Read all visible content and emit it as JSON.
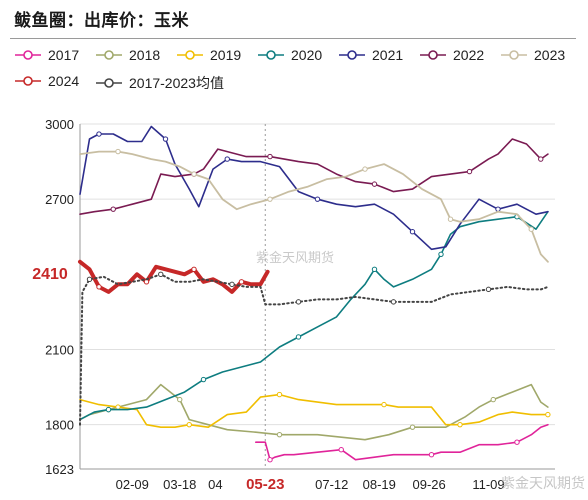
{
  "page": {
    "title": "鲅鱼圈：出库价：玉米",
    "watermark_center": "紫金天风期货",
    "watermark_corner": "紫金天风期货"
  },
  "chart_data": {
    "type": "line",
    "title": "鲅鱼圈：出库价：玉米",
    "ylim": [
      1623,
      3000
    ],
    "y_ticks": [
      {
        "label": "3000",
        "value": 3000
      },
      {
        "label": "2700",
        "value": 2700
      },
      {
        "label": "2100",
        "value": 2100
      },
      {
        "label": "1800",
        "value": 1800
      },
      {
        "label": "1623",
        "value": 1623
      }
    ],
    "x_ticks": [
      {
        "label": "02-09",
        "value": 0.11
      },
      {
        "label": "03-18",
        "value": 0.21
      },
      {
        "label": "04",
        "value": 0.285
      },
      {
        "label": "05-23",
        "value": 0.39
      },
      {
        "label": "07-12",
        "value": 0.53
      },
      {
        "label": "08-19",
        "value": 0.63
      },
      {
        "label": "09-26",
        "value": 0.735
      },
      {
        "label": "11-09",
        "value": 0.86
      }
    ],
    "highlight_x": {
      "label": "05-23",
      "value": 0.39
    },
    "latest_label": {
      "text": "2410",
      "value": 2410
    },
    "grid": "horizontal",
    "legend": "top",
    "series": [
      {
        "name": "2017",
        "color": "#e0249a",
        "style": "solid",
        "width": 1.6,
        "x": [
          0.37,
          0.39,
          0.4,
          0.41,
          0.43,
          0.45,
          0.5,
          0.55,
          0.58,
          0.62,
          0.66,
          0.7,
          0.74,
          0.76,
          0.8,
          0.84,
          0.88,
          0.92,
          0.95,
          0.97,
          0.985
        ],
        "y": [
          1730,
          1730,
          1660,
          1670,
          1680,
          1680,
          1690,
          1700,
          1660,
          1670,
          1680,
          1680,
          1680,
          1690,
          1690,
          1720,
          1720,
          1730,
          1760,
          1790,
          1800
        ]
      },
      {
        "name": "2018",
        "color": "#a0a86a",
        "style": "solid",
        "width": 1.6,
        "x": [
          0.0,
          0.02,
          0.06,
          0.1,
          0.14,
          0.17,
          0.19,
          0.21,
          0.23,
          0.27,
          0.31,
          0.37,
          0.42,
          0.5,
          0.55,
          0.6,
          0.65,
          0.7,
          0.73,
          0.77,
          0.81,
          0.84,
          0.87,
          0.91,
          0.95,
          0.97,
          0.985
        ],
        "y": [
          1820,
          1840,
          1860,
          1880,
          1900,
          1960,
          1930,
          1900,
          1820,
          1800,
          1780,
          1770,
          1760,
          1760,
          1750,
          1740,
          1760,
          1790,
          1790,
          1790,
          1830,
          1870,
          1900,
          1930,
          1960,
          1890,
          1870
        ]
      },
      {
        "name": "2019",
        "color": "#f0be00",
        "style": "solid",
        "width": 1.6,
        "x": [
          0.0,
          0.04,
          0.08,
          0.12,
          0.14,
          0.17,
          0.2,
          0.23,
          0.27,
          0.31,
          0.35,
          0.38,
          0.42,
          0.46,
          0.5,
          0.54,
          0.6,
          0.64,
          0.67,
          0.71,
          0.74,
          0.77,
          0.8,
          0.84,
          0.88,
          0.91,
          0.95,
          0.985
        ],
        "y": [
          1900,
          1880,
          1870,
          1860,
          1800,
          1790,
          1790,
          1800,
          1790,
          1840,
          1850,
          1910,
          1920,
          1900,
          1890,
          1880,
          1880,
          1880,
          1870,
          1870,
          1870,
          1800,
          1800,
          1810,
          1840,
          1850,
          1840,
          1840
        ]
      },
      {
        "name": "2020",
        "color": "#0e7d80",
        "style": "solid",
        "width": 1.6,
        "x": [
          0.0,
          0.03,
          0.06,
          0.1,
          0.14,
          0.18,
          0.22,
          0.26,
          0.3,
          0.34,
          0.38,
          0.42,
          0.46,
          0.5,
          0.54,
          0.57,
          0.6,
          0.62,
          0.64,
          0.66,
          0.7,
          0.74,
          0.76,
          0.78,
          0.8,
          0.84,
          0.88,
          0.92,
          0.96,
          0.985
        ],
        "y": [
          1820,
          1850,
          1860,
          1860,
          1870,
          1900,
          1930,
          1980,
          2010,
          2030,
          2050,
          2110,
          2150,
          2190,
          2230,
          2300,
          2360,
          2420,
          2380,
          2350,
          2380,
          2420,
          2480,
          2560,
          2590,
          2610,
          2620,
          2630,
          2580,
          2650
        ]
      },
      {
        "name": "2021",
        "color": "#2d2d8c",
        "style": "solid",
        "width": 1.6,
        "x": [
          0.0,
          0.02,
          0.04,
          0.07,
          0.1,
          0.13,
          0.15,
          0.18,
          0.2,
          0.23,
          0.25,
          0.28,
          0.31,
          0.34,
          0.38,
          0.42,
          0.46,
          0.5,
          0.54,
          0.58,
          0.62,
          0.66,
          0.7,
          0.74,
          0.77,
          0.8,
          0.84,
          0.88,
          0.92,
          0.96,
          0.985
        ],
        "y": [
          2720,
          2940,
          2960,
          2960,
          2930,
          2930,
          2990,
          2940,
          2840,
          2740,
          2670,
          2820,
          2860,
          2850,
          2850,
          2830,
          2730,
          2700,
          2680,
          2670,
          2680,
          2640,
          2570,
          2500,
          2510,
          2600,
          2700,
          2660,
          2680,
          2640,
          2650
        ]
      },
      {
        "name": "2022",
        "color": "#7a1b52",
        "style": "solid",
        "width": 1.6,
        "x": [
          0.0,
          0.03,
          0.07,
          0.11,
          0.15,
          0.17,
          0.2,
          0.24,
          0.26,
          0.29,
          0.31,
          0.35,
          0.4,
          0.46,
          0.5,
          0.54,
          0.58,
          0.62,
          0.66,
          0.7,
          0.74,
          0.78,
          0.82,
          0.86,
          0.88,
          0.91,
          0.94,
          0.97,
          0.985
        ],
        "y": [
          2640,
          2650,
          2660,
          2680,
          2700,
          2800,
          2790,
          2800,
          2820,
          2900,
          2890,
          2870,
          2870,
          2850,
          2840,
          2800,
          2770,
          2760,
          2730,
          2740,
          2790,
          2800,
          2810,
          2860,
          2880,
          2940,
          2920,
          2860,
          2880
        ]
      },
      {
        "name": "2023",
        "color": "#c8bea2",
        "style": "solid",
        "width": 1.8,
        "x": [
          0.0,
          0.04,
          0.08,
          0.11,
          0.15,
          0.18,
          0.21,
          0.24,
          0.27,
          0.3,
          0.33,
          0.36,
          0.4,
          0.44,
          0.48,
          0.52,
          0.56,
          0.6,
          0.64,
          0.68,
          0.72,
          0.76,
          0.78,
          0.8,
          0.84,
          0.88,
          0.92,
          0.95,
          0.97,
          0.985
        ],
        "y": [
          2880,
          2890,
          2890,
          2880,
          2860,
          2850,
          2830,
          2800,
          2780,
          2700,
          2660,
          2680,
          2700,
          2730,
          2750,
          2780,
          2790,
          2820,
          2840,
          2800,
          2740,
          2700,
          2620,
          2610,
          2620,
          2650,
          2640,
          2580,
          2480,
          2450
        ]
      },
      {
        "name": "2024",
        "color": "#c62828",
        "style": "solid",
        "width": 4,
        "x": [
          0.0,
          0.02,
          0.04,
          0.06,
          0.08,
          0.1,
          0.12,
          0.14,
          0.16,
          0.18,
          0.2,
          0.22,
          0.24,
          0.26,
          0.28,
          0.3,
          0.32,
          0.34,
          0.36,
          0.38,
          0.395
        ],
        "y": [
          2450,
          2420,
          2350,
          2330,
          2360,
          2360,
          2400,
          2370,
          2430,
          2420,
          2410,
          2400,
          2420,
          2370,
          2380,
          2360,
          2330,
          2370,
          2360,
          2360,
          2410
        ]
      },
      {
        "name": "2017-2023均值",
        "color": "#444444",
        "style": "dotted",
        "width": 2,
        "x": [
          0.0,
          0.005,
          0.02,
          0.05,
          0.08,
          0.11,
          0.14,
          0.17,
          0.2,
          0.23,
          0.26,
          0.29,
          0.32,
          0.35,
          0.38,
          0.39,
          0.42,
          0.46,
          0.5,
          0.54,
          0.58,
          0.62,
          0.66,
          0.7,
          0.74,
          0.78,
          0.82,
          0.86,
          0.9,
          0.94,
          0.97,
          0.985
        ],
        "y": [
          1800,
          2330,
          2380,
          2390,
          2360,
          2370,
          2380,
          2400,
          2370,
          2370,
          2380,
          2370,
          2360,
          2350,
          2350,
          2280,
          2280,
          2290,
          2300,
          2300,
          2310,
          2300,
          2290,
          2290,
          2290,
          2320,
          2330,
          2340,
          2350,
          2340,
          2340,
          2350
        ]
      }
    ]
  }
}
